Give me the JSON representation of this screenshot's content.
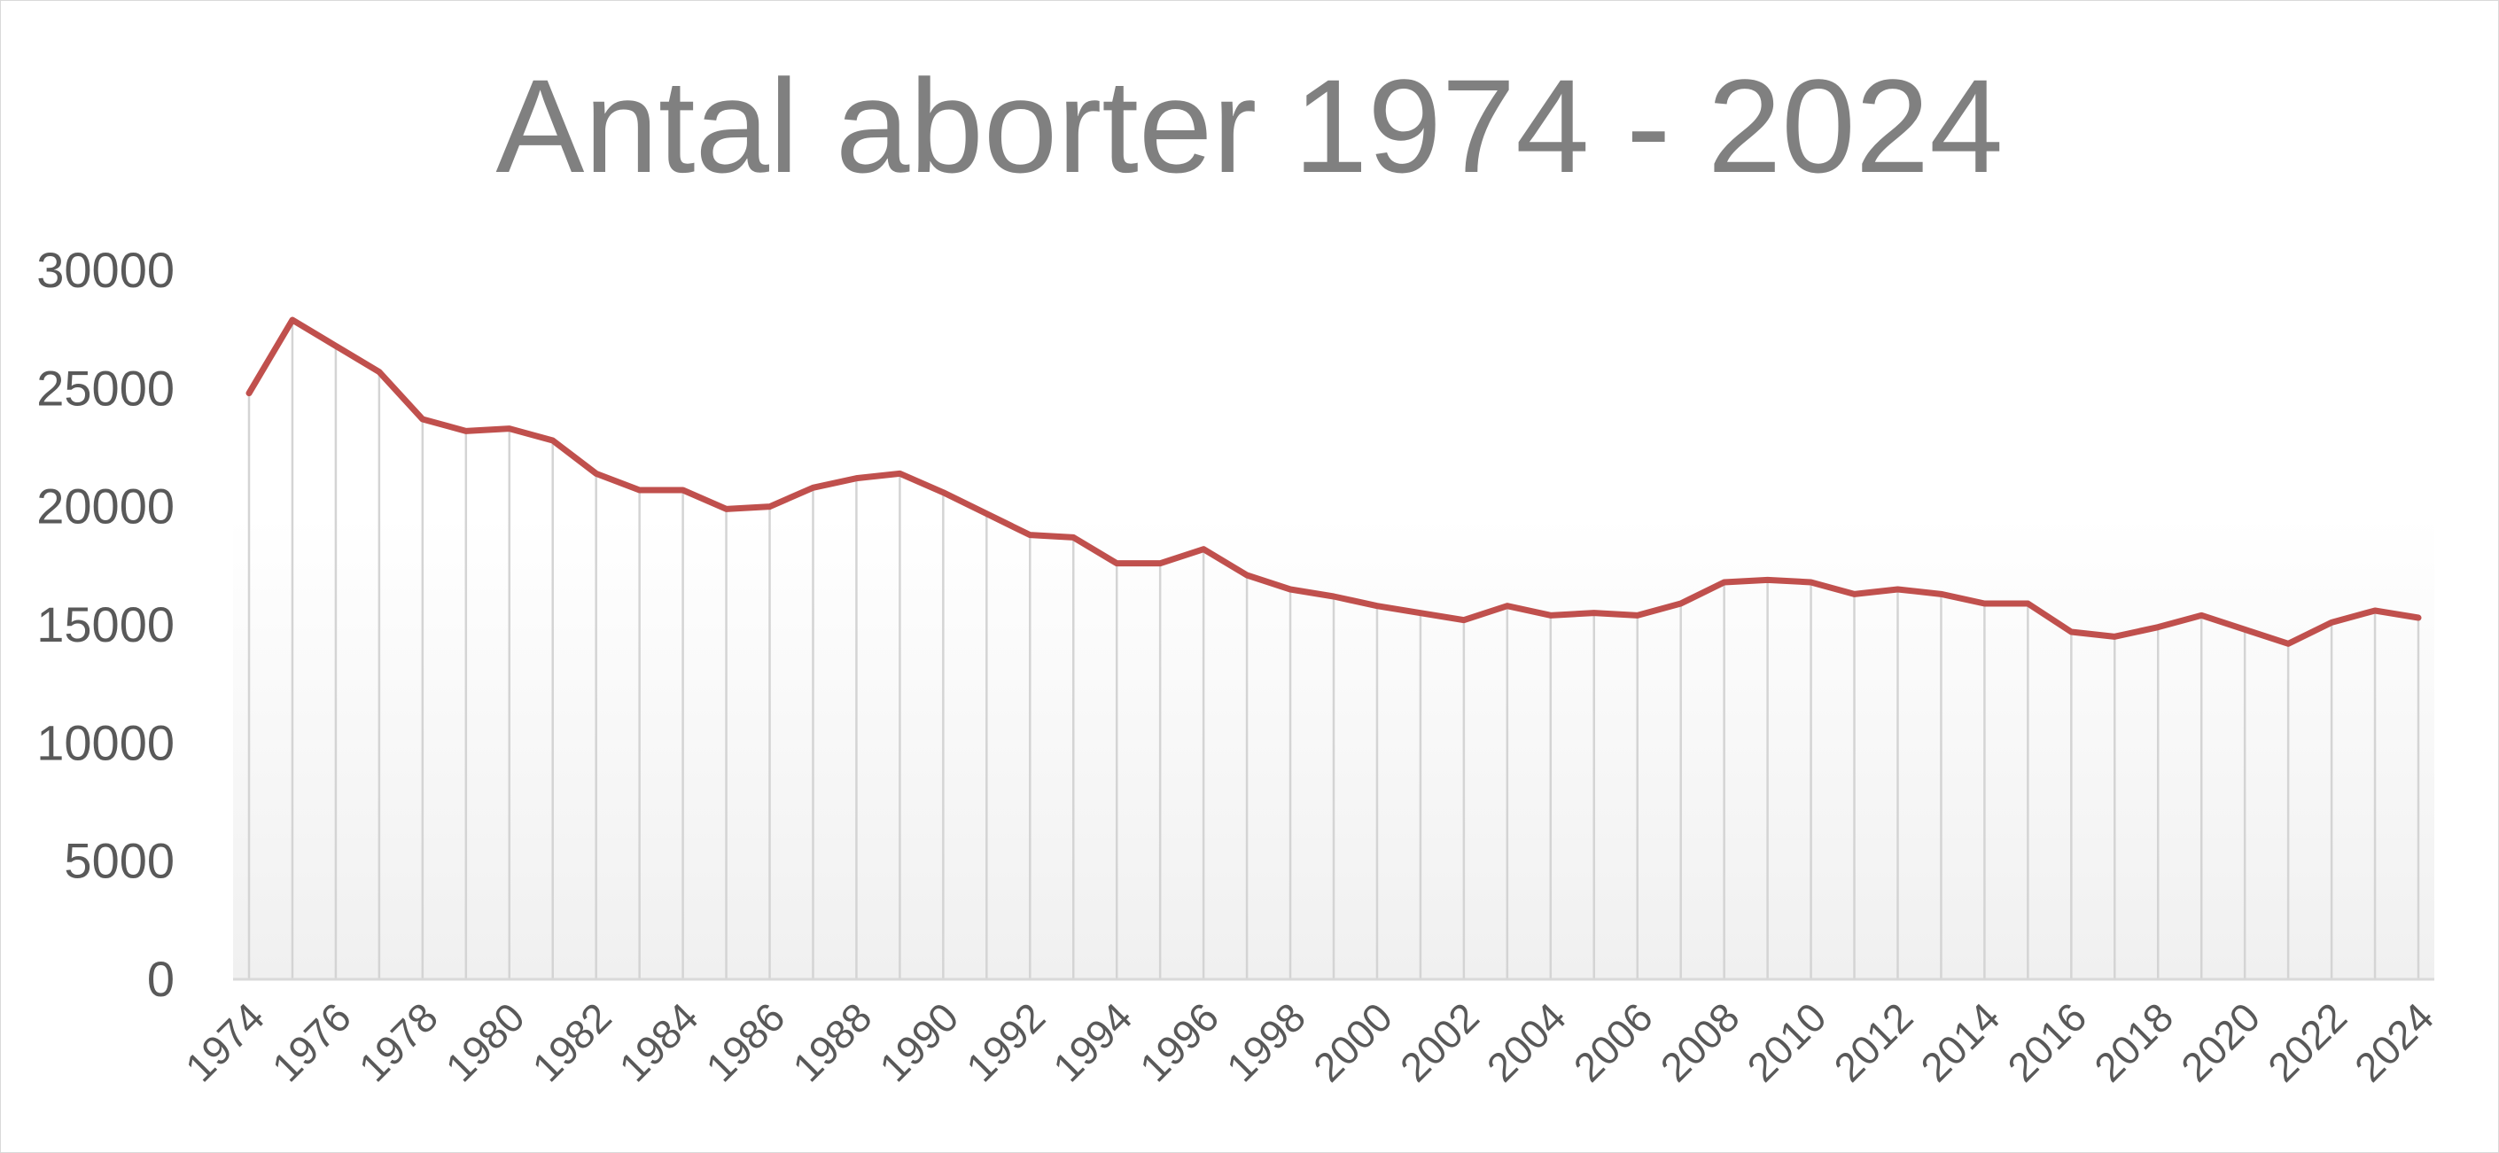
{
  "chart_data": {
    "type": "line",
    "title": "Antal aborter 1974 - 2024",
    "xlabel": "",
    "ylabel": "",
    "ylim": [
      0,
      30000
    ],
    "y_ticks": [
      0,
      5000,
      10000,
      15000,
      20000,
      25000,
      30000
    ],
    "x_tick_labels": [
      "1974",
      "1976",
      "1978",
      "1980",
      "1982",
      "1984",
      "1986",
      "1988",
      "1990",
      "1992",
      "1994",
      "1996",
      "1998",
      "2000",
      "2002",
      "2004",
      "2006",
      "2008",
      "2010",
      "2012",
      "2014",
      "2016",
      "2018",
      "2020",
      "2022",
      "2024"
    ],
    "grid": "vertical drop lines at each year",
    "legend": "none",
    "line_color": "#c0504d",
    "x": [
      1974,
      1975,
      1976,
      1977,
      1978,
      1979,
      1980,
      1981,
      1982,
      1983,
      1984,
      1985,
      1986,
      1987,
      1988,
      1989,
      1990,
      1991,
      1992,
      1993,
      1994,
      1995,
      1996,
      1997,
      1998,
      1999,
      2000,
      2001,
      2002,
      2003,
      2004,
      2005,
      2006,
      2007,
      2008,
      2009,
      2010,
      2011,
      2012,
      2013,
      2014,
      2015,
      2016,
      2017,
      2018,
      2019,
      2020,
      2021,
      2022,
      2023,
      2024
    ],
    "values": [
      24800,
      27900,
      26800,
      25700,
      23700,
      23200,
      23300,
      22800,
      21400,
      20700,
      20700,
      19900,
      20000,
      20800,
      21200,
      21400,
      20600,
      19700,
      18800,
      18700,
      17600,
      17600,
      18200,
      17100,
      16500,
      16200,
      15800,
      15500,
      15200,
      15800,
      15400,
      15500,
      15400,
      15900,
      16800,
      16900,
      16800,
      16300,
      16500,
      16300,
      15900,
      15900,
      14700,
      14500,
      14900,
      15400,
      14800,
      14200,
      15100,
      15600,
      15300
    ]
  }
}
